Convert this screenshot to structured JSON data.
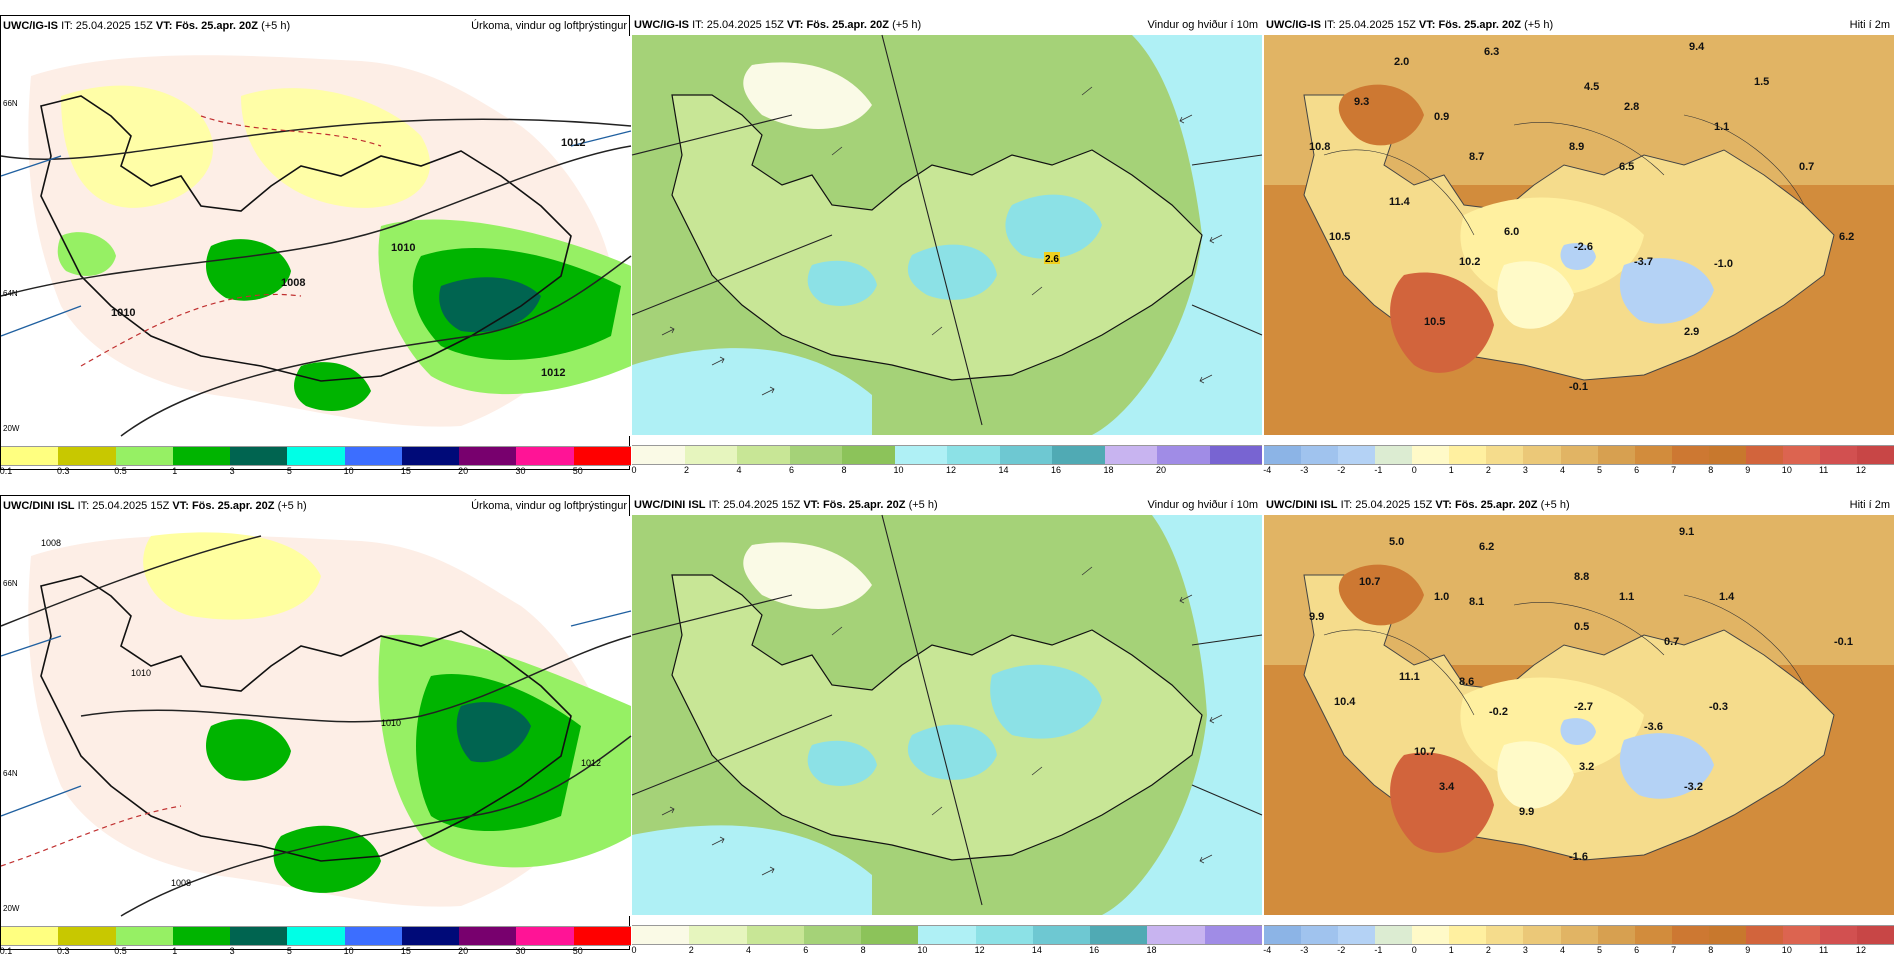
{
  "panels": [
    {
      "id": "p1",
      "model": "UWC/IG-IS",
      "it_label": "IT:",
      "it": "25.04.2025 15Z",
      "vt_label": "VT:",
      "vt": "Fös. 25.apr. 20Z",
      "lead": "(+5 h)",
      "title": "Úrkoma, vindur og loftþrýstingur",
      "legend": "precip"
    },
    {
      "id": "p2",
      "model": "UWC/IG-IS",
      "it_label": "IT:",
      "it": "25.04.2025 15Z",
      "vt_label": "VT:",
      "vt": "Fös. 25.apr. 20Z",
      "lead": "(+5 h)",
      "title": "Vindur og hviður í 10m",
      "legend": "wind20"
    },
    {
      "id": "p3",
      "model": "UWC/IG-IS",
      "it_label": "IT:",
      "it": "25.04.2025 15Z",
      "vt_label": "VT:",
      "vt": "Fös. 25.apr. 20Z",
      "lead": "(+5 h)",
      "title": "Hiti í 2m",
      "legend": "temp"
    },
    {
      "id": "p4",
      "model": "UWC/DINI ISL",
      "it_label": "IT:",
      "it": "25.04.2025 15Z",
      "vt_label": "VT:",
      "vt": "Fös. 25.apr. 20Z",
      "lead": "(+5 h)",
      "title": "Úrkoma, vindur og loftþrýstingur",
      "legend": "precip"
    },
    {
      "id": "p5",
      "model": "UWC/DINI ISL",
      "it_label": "IT:",
      "it": "25.04.2025 15Z",
      "vt_label": "VT:",
      "vt": "Fös. 25.apr. 20Z",
      "lead": "(+5 h)",
      "title": "Vindur og hviður í 10m",
      "legend": "wind18"
    },
    {
      "id": "p6",
      "model": "UWC/DINI ISL",
      "it_label": "IT:",
      "it": "25.04.2025 15Z",
      "vt_label": "VT:",
      "vt": "Fös. 25.apr. 20Z",
      "lead": "(+5 h)",
      "title": "Hiti í 2m",
      "legend": "temp"
    }
  ],
  "legends": {
    "precip": {
      "labels": [
        "0.1",
        "0.3",
        "0.5",
        "1",
        "3",
        "5",
        "10",
        "15",
        "20",
        "30",
        "50"
      ],
      "colors": [
        "#ffff80",
        "#c8c800",
        "#96f064",
        "#00b400",
        "#006450",
        "#00ffe6",
        "#3c6eff",
        "#000a78",
        "#78006e",
        "#ff1496",
        "#ff0000"
      ]
    },
    "wind20": {
      "labels": [
        "0",
        "2",
        "4",
        "6",
        "8",
        "10",
        "12",
        "14",
        "16",
        "18",
        "20"
      ],
      "colors": [
        "#fafae6",
        "#e6f5be",
        "#c8e696",
        "#a5d278",
        "#8cc35a",
        "#aff0f5",
        "#8ce1e6",
        "#6ec8d2",
        "#50aab4",
        "#c8b4f0",
        "#a08ce6",
        "#7864d2"
      ]
    },
    "wind18": {
      "labels": [
        "0",
        "2",
        "4",
        "6",
        "8",
        "10",
        "12",
        "14",
        "16",
        "18"
      ],
      "colors": [
        "#fafae6",
        "#e6f5be",
        "#c8e696",
        "#a5d278",
        "#8cc35a",
        "#aff0f5",
        "#8ce1e6",
        "#6ec8d2",
        "#50aab4",
        "#c8b4f0",
        "#a08ce6"
      ]
    },
    "temp": {
      "labels": [
        "-4",
        "-3",
        "-2",
        "-1",
        "0",
        "1",
        "2",
        "3",
        "4",
        "5",
        "6",
        "7",
        "8",
        "9",
        "10",
        "11",
        "12"
      ],
      "colors": [
        "#8cb4e6",
        "#a0c3ee",
        "#b4d2f5",
        "#dcecd2",
        "#fffac8",
        "#fff0a0",
        "#f5dc8c",
        "#ebc878",
        "#e1b464",
        "#d7a050",
        "#d28c3c",
        "#cd7832",
        "#c8782d",
        "#d2643c",
        "#dc6450",
        "#d25050",
        "#c84646"
      ]
    }
  },
  "axis_labels": {
    "lat66": "66N",
    "lat64": "64N",
    "lon20": "20W"
  },
  "isobars_top": [
    "1012",
    "1010",
    "1008",
    "1010",
    "1012"
  ],
  "isobars_bottom": [
    "1008",
    "1010",
    "1010",
    "1008",
    "1012"
  ],
  "wind_value_top": "2.6",
  "temps_top": [
    "2.0",
    "6.3",
    "9.4",
    "1.5",
    "9.3",
    "0.9",
    "4.5",
    "2.8",
    "1.1",
    "10.8",
    "8.7",
    "8.9",
    "6.5",
    "0.7",
    "11.4",
    "10.5",
    "6.0",
    "-2.6",
    "-3.7",
    "-1.0",
    "6.2",
    "10.2",
    "10.5",
    "2.9",
    "-0.1"
  ],
  "temps_bottom": [
    "5.0",
    "6.2",
    "9.1",
    "10.7",
    "1.0",
    "8.8",
    "1.1",
    "1.4",
    "9.9",
    "8.1",
    "0.5",
    "0.7",
    "-0.1",
    "11.1",
    "8.6",
    "10.4",
    "-0.2",
    "-2.7",
    "-0.3",
    "10.7",
    "-3.6",
    "3.2",
    "3.4",
    "-3.2",
    "9.9",
    "-1.6"
  ]
}
